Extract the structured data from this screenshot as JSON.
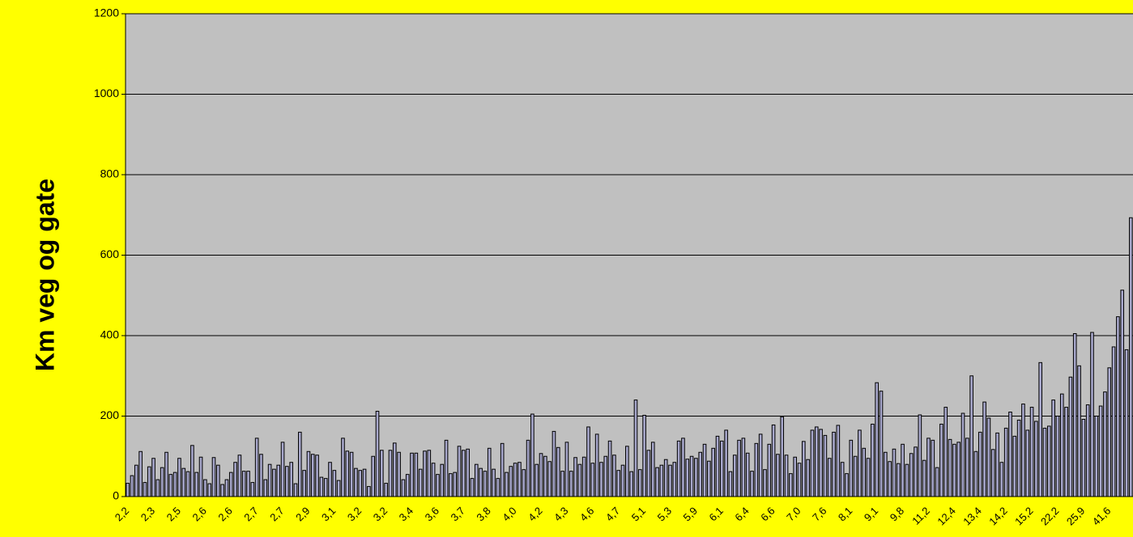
{
  "chart_data": {
    "type": "bar",
    "y_label": "Km veg og gate",
    "categories": [
      "2,2",
      null,
      null,
      null,
      null,
      null,
      "2,3",
      null,
      null,
      null,
      null,
      null,
      "2,5",
      null,
      null,
      null,
      null,
      null,
      "2,6",
      null,
      null,
      null,
      null,
      null,
      "2,6",
      null,
      null,
      null,
      null,
      null,
      "2,7",
      null,
      null,
      null,
      null,
      null,
      "2,7",
      null,
      null,
      null,
      null,
      null,
      "2,9",
      null,
      null,
      null,
      null,
      null,
      "3,1",
      null,
      null,
      null,
      null,
      null,
      "3,2",
      null,
      null,
      null,
      null,
      null,
      "3,2",
      null,
      null,
      null,
      null,
      null,
      "3,4",
      null,
      null,
      null,
      null,
      null,
      "3,6",
      null,
      null,
      null,
      null,
      null,
      "3,7",
      null,
      null,
      null,
      null,
      null,
      "3,8",
      null,
      null,
      null,
      null,
      null,
      "4,0",
      null,
      null,
      null,
      null,
      null,
      "4,2",
      null,
      null,
      null,
      null,
      null,
      "4,3",
      null,
      null,
      null,
      null,
      null,
      "4,6",
      null,
      null,
      null,
      null,
      null,
      "4,7",
      null,
      null,
      null,
      null,
      null,
      "5,1",
      null,
      null,
      null,
      null,
      null,
      "5,3",
      null,
      null,
      null,
      null,
      null,
      "5,9",
      null,
      null,
      null,
      null,
      null,
      "6,1",
      null,
      null,
      null,
      null,
      null,
      "6,4",
      null,
      null,
      null,
      null,
      null,
      "6,6",
      null,
      null,
      null,
      null,
      null,
      "7,0",
      null,
      null,
      null,
      null,
      null,
      "7,6",
      null,
      null,
      null,
      null,
      null,
      "8,1",
      null,
      null,
      null,
      null,
      null,
      "9,1",
      null,
      null,
      null,
      null,
      null,
      "9,8",
      null,
      null,
      null,
      null,
      null,
      "11,2",
      null,
      null,
      null,
      null,
      null,
      "12,4",
      null,
      null,
      null,
      null,
      null,
      "13,4",
      null,
      null,
      null,
      null,
      null,
      "14,2",
      null,
      null,
      null,
      null,
      null,
      "15,2",
      null,
      null,
      null,
      null,
      null,
      "22,2",
      null,
      null,
      null,
      null,
      null,
      "25,9",
      null,
      null,
      null,
      null,
      null,
      "41,6",
      null,
      null,
      null,
      null,
      null
    ],
    "values": [
      33,
      52,
      78,
      112,
      35,
      74,
      95,
      42,
      72,
      110,
      55,
      60,
      95,
      70,
      62,
      127,
      60,
      98,
      42,
      32,
      97,
      78,
      30,
      42,
      60,
      85,
      103,
      63,
      63,
      35,
      145,
      105,
      42,
      80,
      68,
      78,
      135,
      75,
      85,
      32,
      160,
      65,
      112,
      105,
      103,
      48,
      45,
      85,
      65,
      40,
      145,
      113,
      110,
      70,
      65,
      68,
      25,
      100,
      212,
      115,
      33,
      115,
      133,
      110,
      42,
      55,
      108,
      108,
      68,
      113,
      115,
      83,
      55,
      80,
      140,
      57,
      60,
      125,
      115,
      118,
      45,
      80,
      70,
      63,
      120,
      68,
      45,
      132,
      60,
      75,
      83,
      85,
      67,
      140,
      205,
      80,
      107,
      100,
      87,
      162,
      122,
      63,
      135,
      63,
      97,
      80,
      98,
      173,
      83,
      155,
      85,
      100,
      138,
      103,
      65,
      78,
      125,
      62,
      240,
      67,
      202,
      115,
      135,
      72,
      78,
      92,
      78,
      85,
      138,
      145,
      93,
      100,
      95,
      110,
      130,
      88,
      120,
      150,
      138,
      165,
      62,
      103,
      140,
      145,
      108,
      63,
      132,
      155,
      67,
      130,
      178,
      105,
      198,
      103,
      57,
      98,
      83,
      137,
      92,
      165,
      173,
      167,
      152,
      95,
      160,
      177,
      85,
      57,
      140,
      100,
      165,
      120,
      95,
      180,
      283,
      262,
      110,
      87,
      118,
      82,
      130,
      80,
      107,
      123,
      203,
      90,
      145,
      140,
      72,
      180,
      222,
      142,
      130,
      135,
      207,
      145,
      300,
      112,
      160,
      235,
      195,
      117,
      158,
      85,
      170,
      210,
      150,
      190,
      230,
      165,
      222,
      187,
      333,
      170,
      175,
      240,
      200,
      255,
      222,
      297,
      405,
      325,
      192,
      228,
      408,
      200,
      225,
      260,
      320,
      372,
      447,
      513,
      365,
      693
    ],
    "color": "#a8a8cc",
    "ylim": [
      0,
      1200
    ],
    "yticks": [
      0,
      200,
      400,
      600,
      800,
      1000,
      1200
    ],
    "grid": true
  }
}
